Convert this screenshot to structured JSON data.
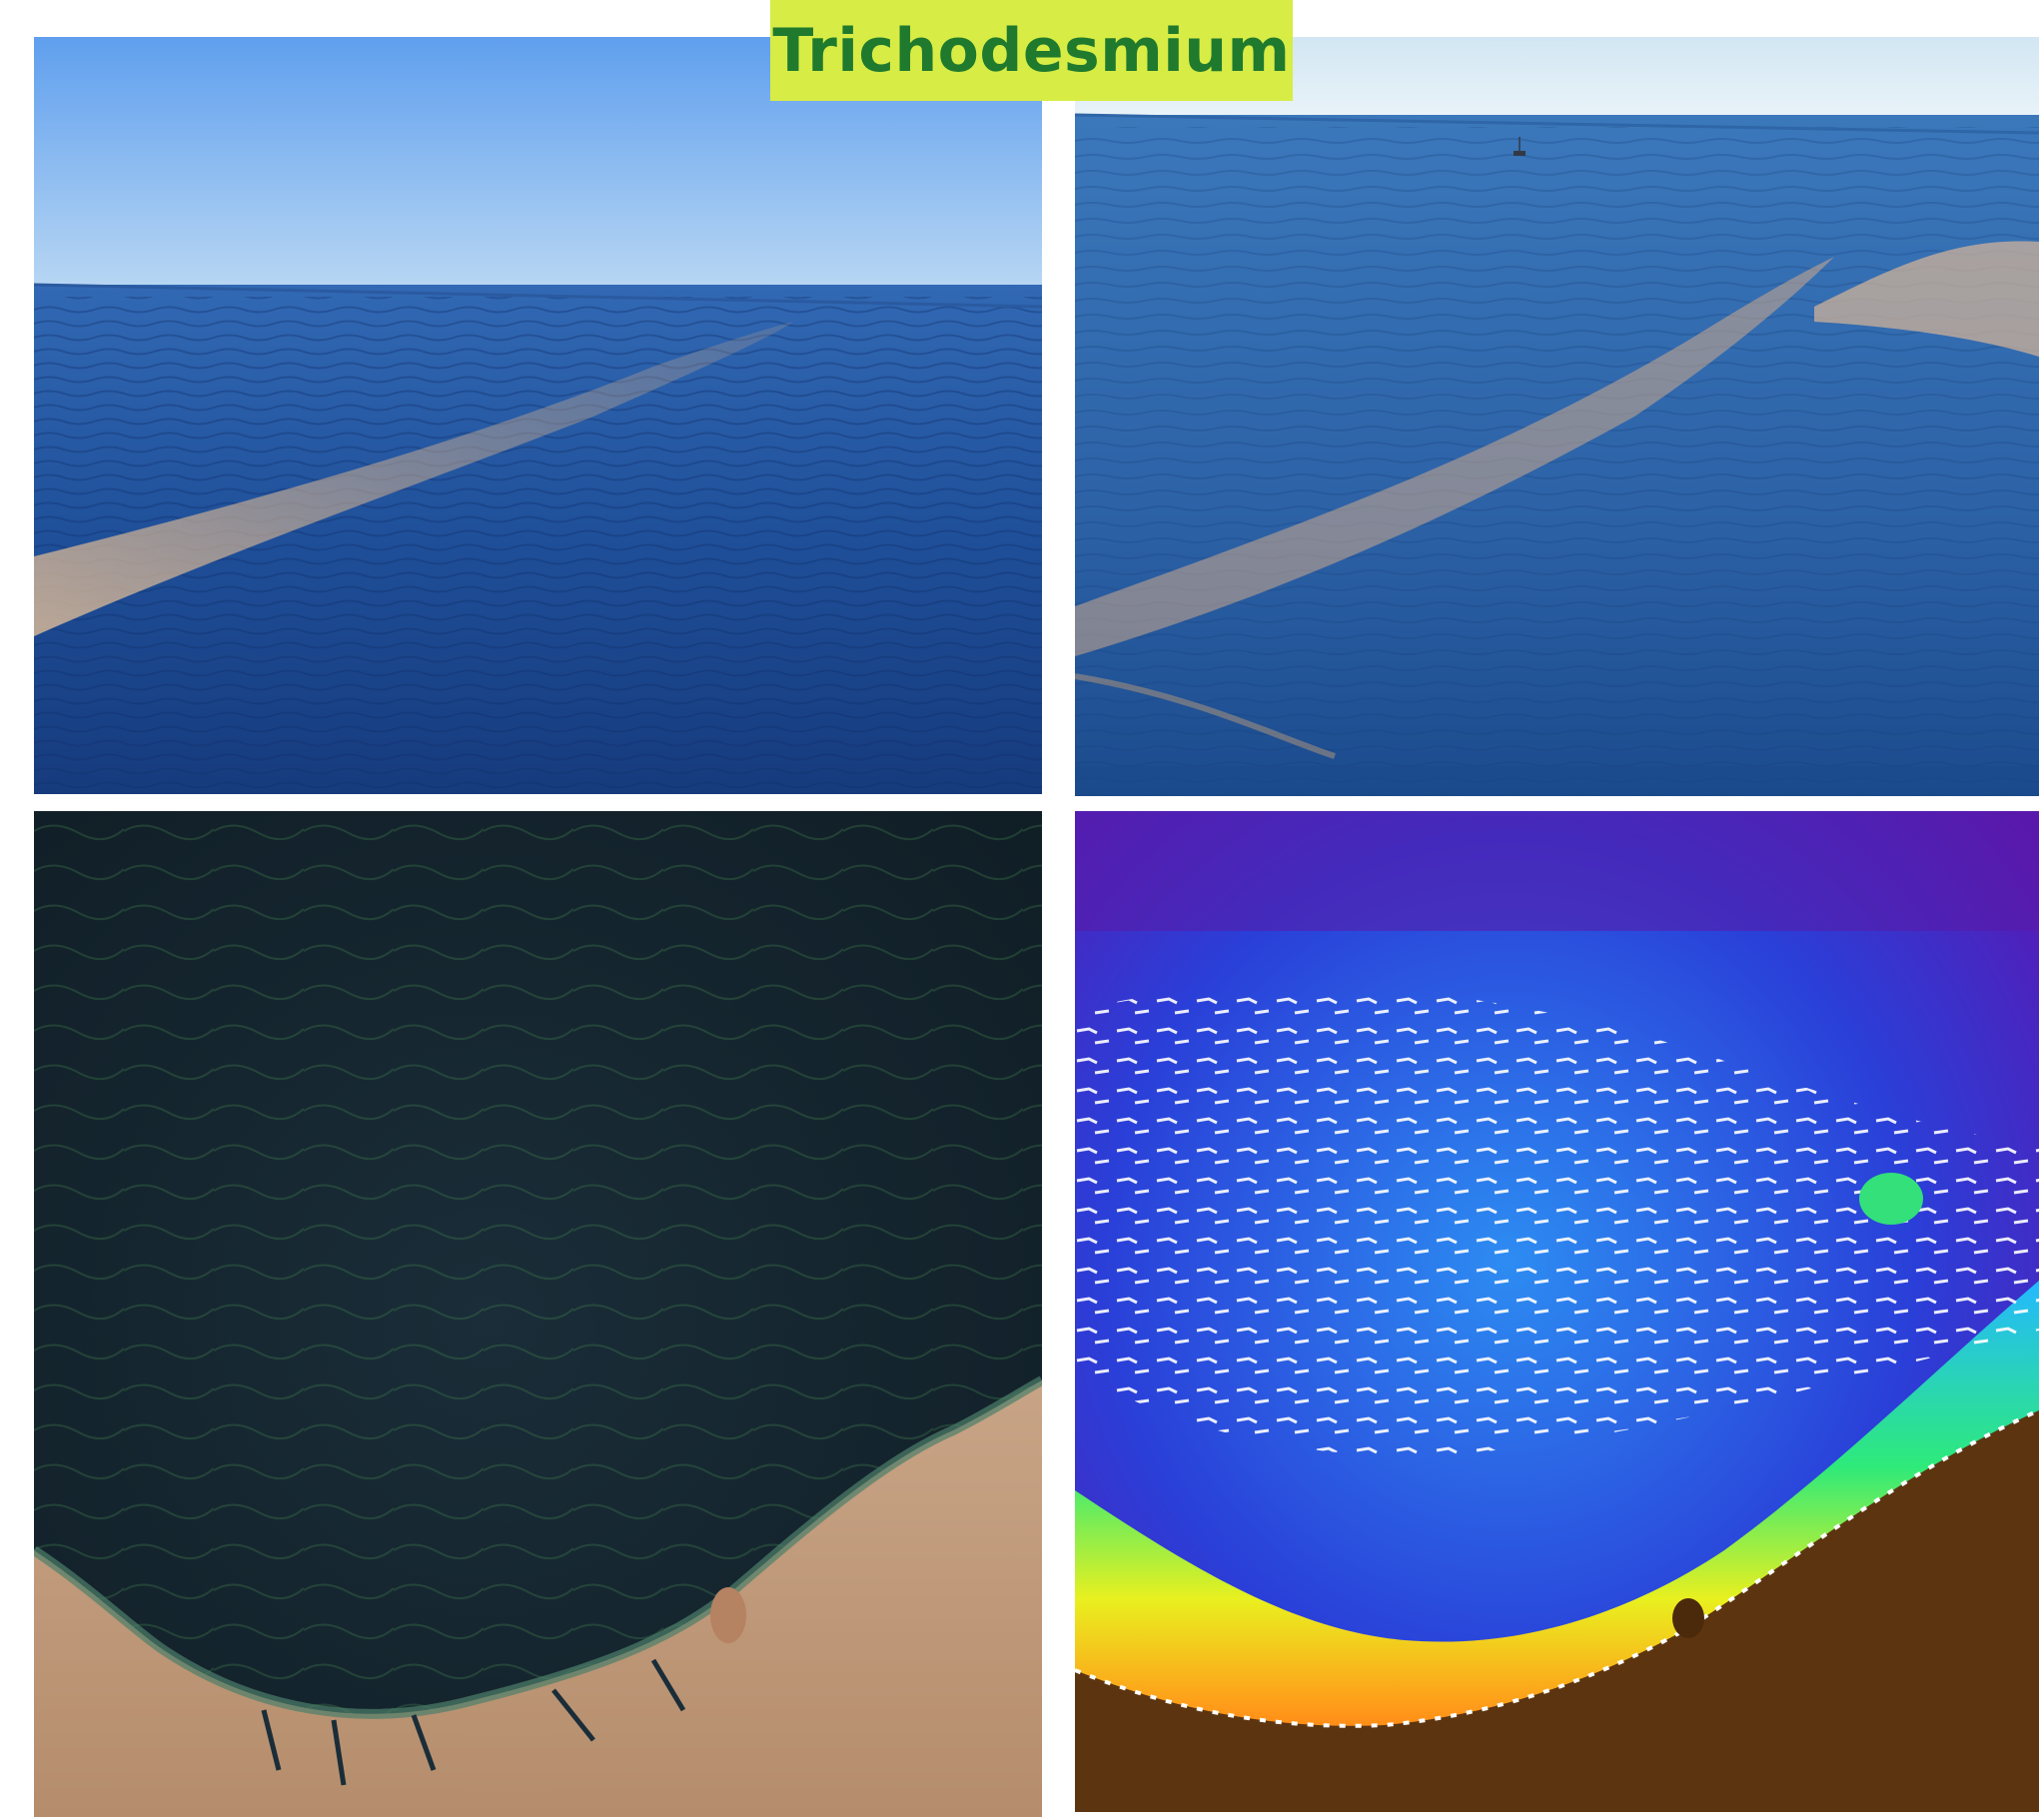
{
  "title": "Trichodesmium",
  "colors": {
    "title_background": "#d7ec45",
    "title_text": "#1f7a2e",
    "sky": "#6aaaf0",
    "ocean": "#1e4f9a",
    "bloom": "#c8a98a",
    "satellite_ocean": "#142530",
    "land_sand": "#c9a484",
    "land_brown": "#5c3410"
  },
  "panels": [
    {
      "id": "ocean-photo-1",
      "kind": "photo"
    },
    {
      "id": "ocean-photo-2",
      "kind": "photo"
    },
    {
      "id": "satellite-true-color",
      "kind": "satellite-image"
    },
    {
      "id": "satellite-chlorophyll-map",
      "kind": "false-color-satellite-image"
    }
  ]
}
